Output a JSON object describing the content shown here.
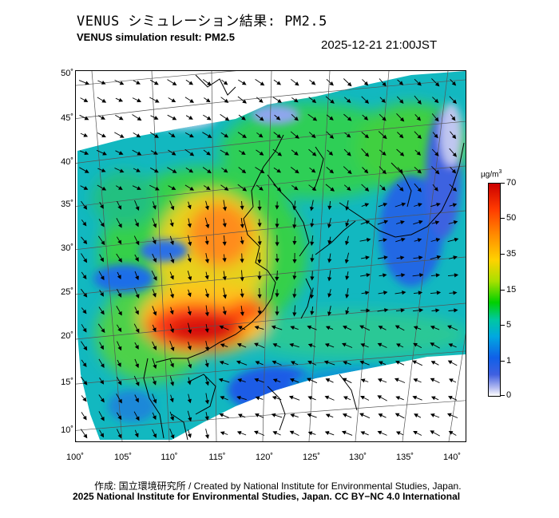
{
  "header": {
    "title_jp": "VENUS シミュレーション結果: PM2.5",
    "title_en": "VENUS simulation result: PM2.5",
    "datetime": "2025-12-21 21:00JST"
  },
  "map": {
    "lat_labels": [
      "50˚",
      "45˚",
      "40˚",
      "35˚",
      "30˚",
      "25˚",
      "20˚",
      "15˚",
      "10˚"
    ],
    "lon_labels": [
      "100˚",
      "105˚",
      "110˚",
      "115˚",
      "120˚",
      "125˚",
      "130˚",
      "135˚",
      "140˚"
    ],
    "wind_direction": "mostly northeasterly over the sea, northwesterly over mainland and Japan",
    "hotspot": "southern China coast, red (>50 µg/m³)"
  },
  "colorbar": {
    "unit": "µg/m³",
    "tick_labels": [
      "70",
      "50",
      "35",
      "15",
      "5",
      "1",
      "0"
    ],
    "colors": [
      "#cc0000",
      "#ff7a00",
      "#ffd200",
      "#00d000",
      "#00b0d0",
      "#1040e0",
      "#ffffff"
    ]
  },
  "footer": {
    "credit": "作成: 国立環境研究所 / Created by National Institute for Environmental Studies, Japan.",
    "copyright": "2025 National Institute for Environmental Studies, Japan. CC BY−NC 4.0 International"
  }
}
